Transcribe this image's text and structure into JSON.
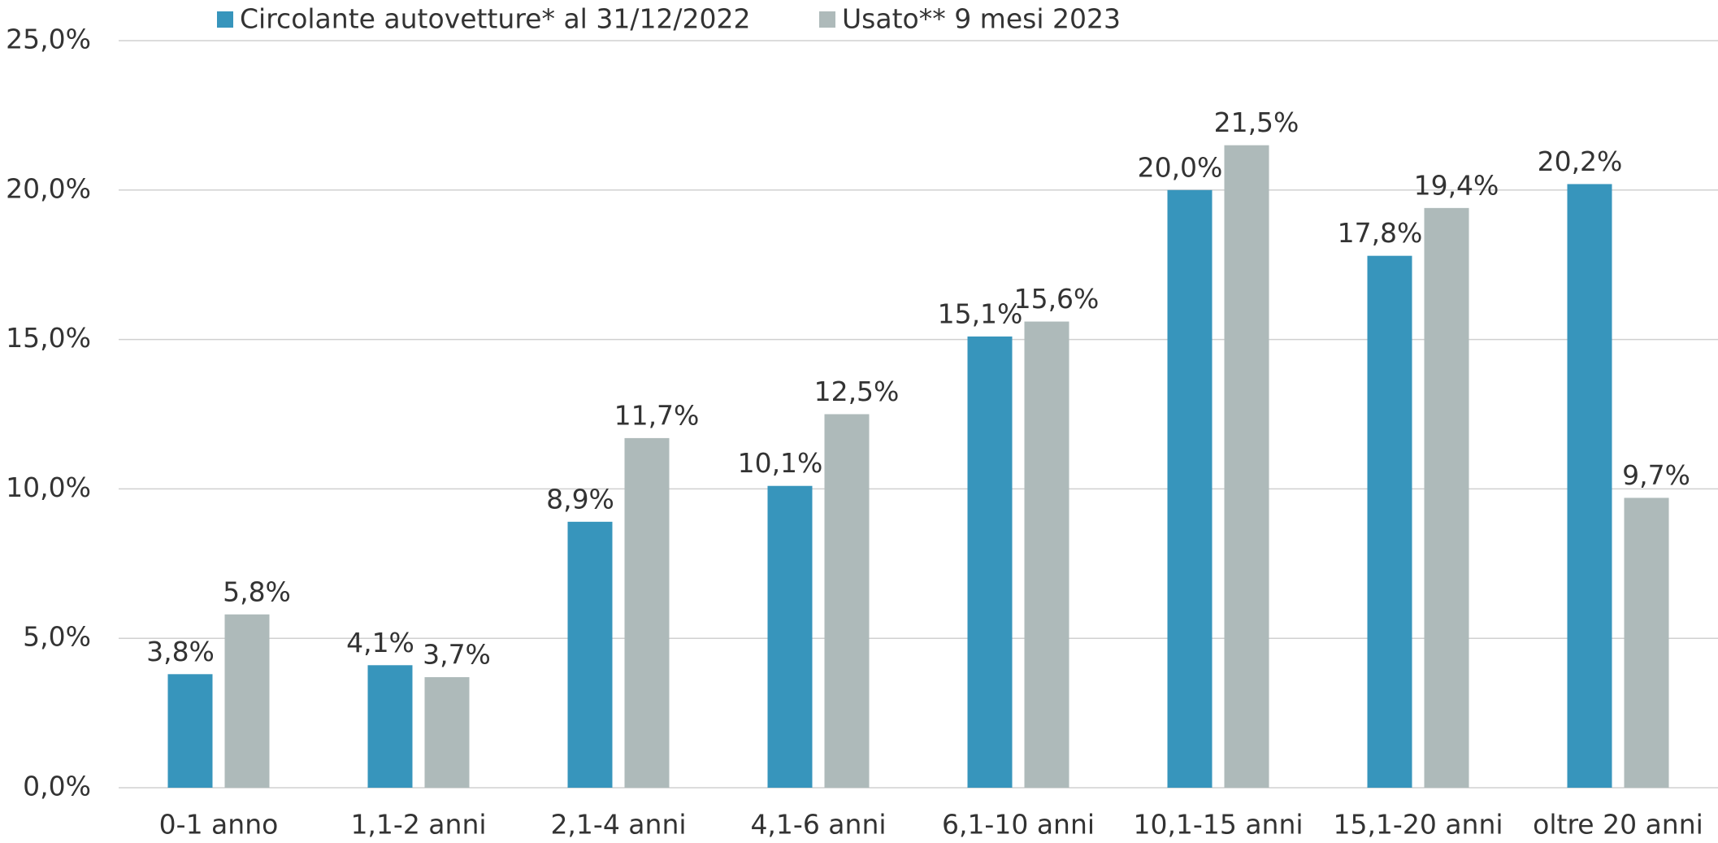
{
  "chart_data": {
    "type": "bar",
    "categories": [
      "0-1 anno",
      "1,1-2 anni",
      "2,1-4 anni",
      "4,1-6 anni",
      "6,1-10 anni",
      "10,1-15 anni",
      "15,1-20 anni",
      "oltre 20 anni"
    ],
    "series": [
      {
        "name": "Circolante autovetture* al 31/12/2022",
        "color": "#3795bc",
        "values": [
          3.8,
          4.1,
          8.9,
          10.1,
          15.1,
          20.0,
          17.8,
          20.2
        ],
        "value_labels": [
          "3,8%",
          "4,1%",
          "8,9%",
          "10,1%",
          "15,1%",
          "20,0%",
          "17,8%",
          "20,2%"
        ]
      },
      {
        "name": "Usato** 9 mesi 2023",
        "color": "#aebaba",
        "values": [
          5.8,
          3.7,
          11.7,
          12.5,
          15.6,
          21.5,
          19.4,
          9.7
        ],
        "value_labels": [
          "5,8%",
          "3,7%",
          "11,7%",
          "12,5%",
          "15,6%",
          "21,5%",
          "19,4%",
          "9,7%"
        ]
      }
    ],
    "ylim": [
      0,
      25
    ],
    "yticks": [
      {
        "value": 0,
        "label": "0,0%"
      },
      {
        "value": 5,
        "label": "5,0%"
      },
      {
        "value": 10,
        "label": "10,0%"
      },
      {
        "value": 15,
        "label": "15,0%"
      },
      {
        "value": 20,
        "label": "20,0%"
      },
      {
        "value": 25,
        "label": "25,0%"
      }
    ],
    "grid": true,
    "legend": "top"
  }
}
